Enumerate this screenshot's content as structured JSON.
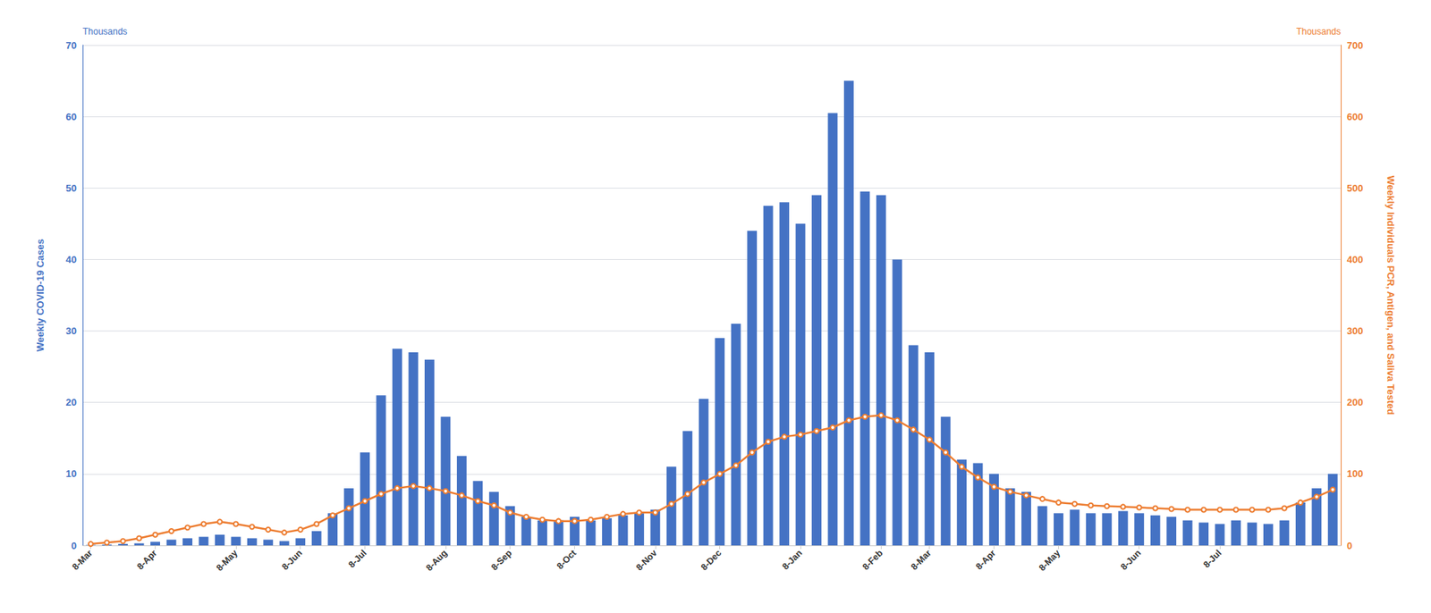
{
  "chart_data": {
    "type": "bar",
    "categories": [
      "8-Mar",
      null,
      null,
      null,
      "8-Apr",
      null,
      null,
      null,
      null,
      "8-May",
      null,
      null,
      null,
      "8-Jun",
      null,
      null,
      null,
      "8-Jul",
      null,
      null,
      null,
      null,
      "8-Aug",
      null,
      null,
      null,
      "8-Sep",
      null,
      null,
      null,
      "8-Oct",
      null,
      null,
      null,
      null,
      "8-Nov",
      null,
      null,
      null,
      "8-Dec",
      null,
      null,
      null,
      null,
      "8-Jan",
      null,
      null,
      null,
      null,
      "8-Feb",
      null,
      null,
      "8-Mar",
      null,
      null,
      null,
      "8-Apr",
      null,
      null,
      null,
      "8-May",
      null,
      null,
      null,
      null,
      "8-Jun",
      null,
      null,
      null,
      null,
      "8-Jul",
      null,
      null,
      null,
      null,
      null,
      null,
      null
    ],
    "series": [
      {
        "type": "bar",
        "color": "#4472C4",
        "values": [
          0.05,
          0.1,
          0.2,
          0.3,
          0.5,
          0.8,
          1.0,
          1.2,
          1.5,
          1.2,
          1.0,
          0.8,
          0.6,
          1.0,
          2.0,
          4.5,
          8.0,
          13.0,
          21.0,
          27.5,
          27.0,
          26.0,
          18.0,
          12.5,
          9.0,
          7.5,
          5.5,
          4.0,
          3.5,
          3.5,
          4.0,
          3.5,
          3.8,
          4.2,
          4.5,
          5.0,
          11.0,
          16.0,
          20.5,
          29.0,
          31.0,
          44.0,
          47.5,
          48.0,
          45.0,
          49.0,
          60.5,
          65.0,
          49.5,
          49.0,
          40.0,
          28.0,
          27.0,
          18.0,
          12.0,
          11.5,
          10.0,
          8.0,
          7.5,
          5.5,
          4.5,
          5.0,
          4.5,
          4.5,
          4.8,
          4.5,
          4.2,
          4.0,
          3.5,
          3.2,
          3.0,
          3.5,
          3.2,
          3.0,
          3.5,
          6.0,
          8.0,
          10.0
        ]
      },
      {
        "type": "line",
        "axis": "y2",
        "color": "#ED7D31",
        "marker": "circle",
        "values": [
          2.0,
          4.0,
          6.0,
          10.0,
          15.0,
          20.0,
          25.0,
          30.0,
          33.0,
          30.0,
          26.0,
          22.0,
          18.0,
          22.0,
          30.0,
          42.0,
          52.0,
          62.0,
          72.0,
          80.0,
          83.0,
          80.0,
          76.0,
          70.0,
          62.0,
          56.0,
          46.0,
          40.0,
          36.0,
          34.0,
          34.0,
          36.0,
          40.0,
          44.0,
          46.0,
          46.0,
          58.0,
          72.0,
          88.0,
          100.0,
          112.0,
          130.0,
          145.0,
          152.0,
          155.0,
          160.0,
          165.0,
          175.0,
          180.0,
          182.0,
          175.0,
          162.0,
          148.0,
          130.0,
          110.0,
          95.0,
          82.0,
          75.0,
          70.0,
          65.0,
          60.0,
          58.0,
          56.0,
          55.0,
          54.0,
          53.0,
          52.0,
          51.0,
          50.0,
          50.0,
          50.0,
          50.0,
          50.0,
          50.0,
          52.0,
          60.0,
          68.0,
          78.0
        ]
      }
    ],
    "ylabel": "Weekly COVID-19 Cases",
    "y2label": "Weekly Individuals PCR, Antigen, and Saliva Tested",
    "ylim": [
      0,
      70
    ],
    "yticks": [
      0,
      10,
      20,
      30,
      40,
      50,
      60,
      70
    ],
    "y2lim": [
      0,
      700
    ],
    "y2ticks": [
      0,
      100,
      200,
      300,
      400,
      500,
      600,
      700
    ],
    "grid": true,
    "annotations": [
      {
        "text": "Thousands",
        "axis": "y"
      },
      {
        "text": "Thousands",
        "axis": "y2"
      }
    ]
  }
}
